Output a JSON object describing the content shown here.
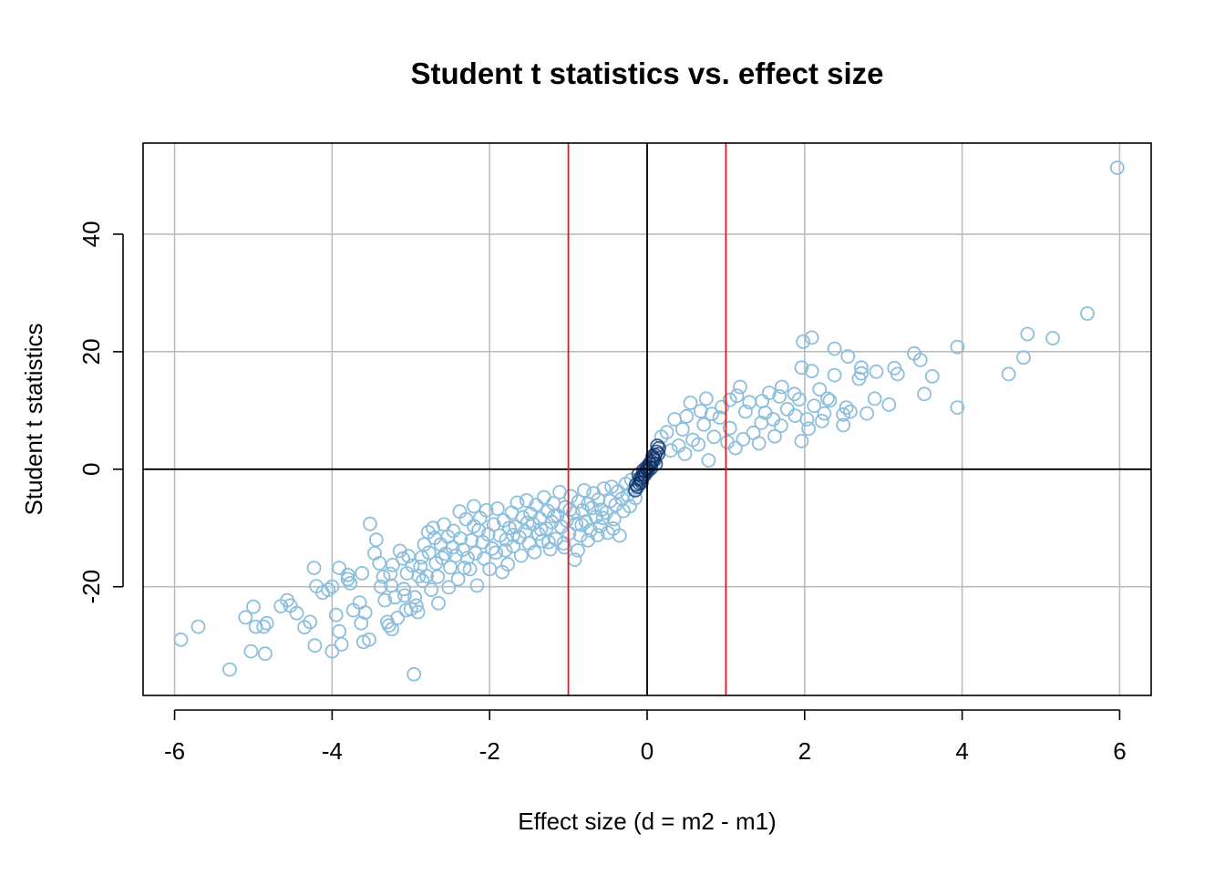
{
  "chart_data": {
    "type": "scatter",
    "title": "Student t statistics vs. effect size",
    "xlabel": "Effect size (d = m2 - m1)",
    "ylabel": "Student t statistics",
    "xlim": [
      -6.4,
      6.4
    ],
    "ylim": [
      -38.5,
      55.5
    ],
    "x_ticks": [
      -6,
      -4,
      -2,
      0,
      2,
      4,
      6
    ],
    "y_ticks": [
      -20,
      0,
      20,
      40
    ],
    "grid": true,
    "vertical_reference_lines": [
      {
        "x": -1,
        "color": "#e41a1c"
      },
      {
        "x": 1,
        "color": "#e41a1c"
      },
      {
        "x": 0,
        "color": "#000000"
      }
    ],
    "horizontal_reference_lines": [
      {
        "y": 0,
        "color": "#000000"
      }
    ],
    "marker": "open-circle",
    "point_color": "#8dbfdc",
    "dense_point_color": "#08306b",
    "points": [
      [
        5.97,
        51.3
      ],
      [
        5.59,
        26.5
      ],
      [
        5.15,
        22.3
      ],
      [
        4.83,
        23.0
      ],
      [
        4.78,
        19.0
      ],
      [
        4.59,
        16.2
      ],
      [
        3.94,
        20.8
      ],
      [
        3.94,
        10.5
      ],
      [
        3.62,
        15.8
      ],
      [
        3.52,
        12.8
      ],
      [
        3.47,
        18.6
      ],
      [
        3.39,
        19.7
      ],
      [
        3.18,
        16.2
      ],
      [
        3.14,
        17.2
      ],
      [
        3.07,
        11.0
      ],
      [
        2.91,
        16.6
      ],
      [
        2.89,
        12.0
      ],
      [
        2.79,
        9.5
      ],
      [
        2.72,
        16.3
      ],
      [
        2.72,
        17.3
      ],
      [
        2.69,
        15.4
      ],
      [
        2.55,
        19.2
      ],
      [
        2.53,
        10.5
      ],
      [
        2.49,
        9.3
      ],
      [
        2.49,
        7.5
      ],
      [
        2.38,
        20.5
      ],
      [
        2.38,
        16.0
      ],
      [
        2.29,
        12.0
      ],
      [
        2.25,
        9.5
      ],
      [
        2.19,
        13.6
      ],
      [
        2.09,
        22.4
      ],
      [
        2.09,
        16.7
      ],
      [
        1.98,
        21.7
      ],
      [
        1.96,
        17.3
      ],
      [
        1.96,
        4.8
      ],
      [
        2.03,
        8.5
      ],
      [
        1.87,
        12.8
      ],
      [
        1.71,
        14.0
      ],
      [
        1.55,
        13.0
      ],
      [
        1.46,
        11.6
      ],
      [
        1.18,
        14.0
      ],
      [
        1.14,
        12.5
      ],
      [
        0.78,
        1.5
      ],
      [
        0.75,
        12.0
      ],
      [
        0.55,
        11.3
      ],
      [
        0.5,
        9.0
      ],
      [
        0.35,
        8.5
      ],
      [
        0.18,
        5.5
      ],
      [
        1.78,
        10.2
      ],
      [
        1.6,
        8.5
      ],
      [
        1.35,
        6.2
      ],
      [
        1.25,
        9.8
      ],
      [
        1.05,
        7.0
      ],
      [
        0.95,
        10.6
      ],
      [
        0.85,
        5.5
      ],
      [
        0.65,
        4.2
      ],
      [
        0.45,
        6.8
      ],
      [
        0.3,
        3.2
      ],
      [
        1.62,
        5.6
      ],
      [
        1.42,
        4.4
      ],
      [
        1.12,
        3.6
      ],
      [
        0.92,
        8.8
      ],
      [
        0.72,
        7.6
      ],
      [
        0.58,
        5.0
      ],
      [
        0.4,
        4.0
      ],
      [
        0.25,
        6.3
      ],
      [
        1.3,
        11.4
      ],
      [
        1.5,
        9.6
      ],
      [
        1.7,
        7.4
      ],
      [
        1.88,
        9.1
      ],
      [
        2.12,
        10.8
      ],
      [
        2.32,
        11.7
      ],
      [
        2.58,
        9.8
      ],
      [
        1.05,
        11.8
      ],
      [
        0.82,
        9.4
      ],
      [
        1.45,
        7.9
      ],
      [
        1.93,
        11.9
      ],
      [
        1.22,
        5.1
      ],
      [
        0.68,
        9.9
      ],
      [
        0.48,
        2.6
      ],
      [
        1.02,
        4.6
      ],
      [
        1.68,
        12.4
      ],
      [
        2.22,
        8.2
      ],
      [
        2.05,
        6.9
      ],
      [
        -5.92,
        -29.0
      ],
      [
        -5.7,
        -26.8
      ],
      [
        -5.3,
        -34.1
      ],
      [
        -5.1,
        -25.2
      ],
      [
        -5.03,
        -31.0
      ],
      [
        -5.0,
        -23.4
      ],
      [
        -4.97,
        -26.8
      ],
      [
        -4.87,
        -26.8
      ],
      [
        -4.85,
        -31.4
      ],
      [
        -4.83,
        -26.2
      ],
      [
        -4.65,
        -23.3
      ],
      [
        -4.57,
        -22.3
      ],
      [
        -4.53,
        -23.2
      ],
      [
        -4.45,
        -24.5
      ],
      [
        -4.35,
        -26.9
      ],
      [
        -4.28,
        -26.0
      ],
      [
        -4.22,
        -30.0
      ],
      [
        -4.23,
        -16.8
      ],
      [
        -4.2,
        -19.9
      ],
      [
        -4.12,
        -21.0
      ],
      [
        -4.05,
        -20.5
      ],
      [
        -4.0,
        -20.0
      ],
      [
        -4.0,
        -31.0
      ],
      [
        -3.95,
        -24.8
      ],
      [
        -3.91,
        -27.6
      ],
      [
        -3.91,
        -16.8
      ],
      [
        -3.88,
        -29.8
      ],
      [
        -3.8,
        -18.0
      ],
      [
        -3.8,
        -18.7
      ],
      [
        -3.77,
        -19.4
      ],
      [
        -3.73,
        -24.0
      ],
      [
        -3.65,
        -22.7
      ],
      [
        -3.63,
        -26.2
      ],
      [
        -3.62,
        -17.7
      ],
      [
        -3.6,
        -29.4
      ],
      [
        -3.58,
        -24.4
      ],
      [
        -3.53,
        -29.0
      ],
      [
        -3.52,
        -9.3
      ],
      [
        -3.46,
        -14.3
      ],
      [
        -3.44,
        -12.0
      ],
      [
        -3.4,
        -16.0
      ],
      [
        -3.38,
        -20.0
      ],
      [
        -3.35,
        -18.3
      ],
      [
        -3.33,
        -22.3
      ],
      [
        -3.3,
        -26.0
      ],
      [
        -3.28,
        -26.6
      ],
      [
        -3.26,
        -17.8
      ],
      [
        -3.25,
        -19.8
      ],
      [
        -3.24,
        -27.2
      ],
      [
        -3.23,
        -16.3
      ],
      [
        -3.2,
        -21.8
      ],
      [
        -3.17,
        -25.3
      ],
      [
        -3.14,
        -13.9
      ],
      [
        -3.1,
        -15.2
      ],
      [
        -3.09,
        -20.4
      ],
      [
        -3.08,
        -21.5
      ],
      [
        -3.06,
        -24.0
      ],
      [
        -3.05,
        -17.7
      ],
      [
        -3.03,
        -14.8
      ],
      [
        -3.0,
        -23.8
      ],
      [
        -2.98,
        -16.4
      ],
      [
        -2.96,
        -34.9
      ],
      [
        -2.95,
        -21.8
      ],
      [
        -2.93,
        -23.2
      ],
      [
        -2.91,
        -24.3
      ],
      [
        -2.9,
        -18.2
      ],
      [
        -2.88,
        -16.6
      ],
      [
        -2.86,
        -15.0
      ],
      [
        -2.85,
        -19.0
      ],
      [
        -2.83,
        -12.8
      ],
      [
        -2.8,
        -18.2
      ],
      [
        -2.78,
        -10.7
      ],
      [
        -2.77,
        -14.2
      ],
      [
        -2.74,
        -20.5
      ],
      [
        -2.72,
        -10.0
      ],
      [
        -2.7,
        -11.7
      ],
      [
        -2.68,
        -16.0
      ],
      [
        -2.66,
        -18.3
      ],
      [
        -2.65,
        -22.8
      ],
      [
        -2.62,
        -12.8
      ],
      [
        -2.6,
        -15.1
      ],
      [
        -2.58,
        -9.4
      ],
      [
        -2.56,
        -14.4
      ],
      [
        -2.53,
        -11.5
      ],
      [
        -2.52,
        -20.1
      ],
      [
        -2.5,
        -16.7
      ],
      [
        -2.47,
        -13.3
      ],
      [
        -2.46,
        -10.5
      ],
      [
        -2.43,
        -14.7
      ],
      [
        -2.4,
        -18.7
      ],
      [
        -2.38,
        -7.2
      ],
      [
        -2.37,
        -11.8
      ],
      [
        -2.34,
        -13.7
      ],
      [
        -2.32,
        -16.8
      ],
      [
        -2.3,
        -8.5
      ],
      [
        -2.28,
        -15.1
      ],
      [
        -2.25,
        -17.0
      ],
      [
        -2.23,
        -12.1
      ],
      [
        -2.2,
        -6.3
      ],
      [
        -2.18,
        -14.3
      ],
      [
        -2.16,
        -19.8
      ],
      [
        -2.14,
        -10.4
      ],
      [
        -2.12,
        -8.3
      ],
      [
        -2.09,
        -12.4
      ],
      [
        -2.07,
        -15.2
      ],
      [
        -2.04,
        -7.0
      ],
      [
        -2.02,
        -11.1
      ],
      [
        -2.0,
        -17.0
      ],
      [
        -1.97,
        -13.5
      ],
      [
        -1.95,
        -9.4
      ],
      [
        -1.92,
        -14.2
      ],
      [
        -1.9,
        -6.7
      ],
      [
        -1.87,
        -11.3
      ],
      [
        -1.84,
        -17.5
      ],
      [
        -1.82,
        -8.7
      ],
      [
        -1.79,
        -12.0
      ],
      [
        -1.77,
        -16.2
      ],
      [
        -1.75,
        -10.0
      ],
      [
        -1.72,
        -7.4
      ],
      [
        -1.7,
        -13.1
      ],
      [
        -1.67,
        -9.8
      ],
      [
        -1.65,
        -5.7
      ],
      [
        -1.62,
        -11.6
      ],
      [
        -1.6,
        -14.7
      ],
      [
        -1.58,
        -8.2
      ],
      [
        -1.55,
        -10.6
      ],
      [
        -1.53,
        -5.3
      ],
      [
        -1.5,
        -12.6
      ],
      [
        -1.48,
        -7.6
      ],
      [
        -1.45,
        -9.3
      ],
      [
        -1.43,
        -14.1
      ],
      [
        -1.41,
        -6.1
      ],
      [
        -1.38,
        -11.0
      ],
      [
        -1.36,
        -8.4
      ],
      [
        -1.33,
        -12.2
      ],
      [
        -1.31,
        -4.8
      ],
      [
        -1.28,
        -10.1
      ],
      [
        -1.26,
        -7.1
      ],
      [
        -1.23,
        -13.6
      ],
      [
        -1.21,
        -9.0
      ],
      [
        -1.19,
        -5.8
      ],
      [
        -1.16,
        -11.9
      ],
      [
        -1.14,
        -7.9
      ],
      [
        -1.11,
        -3.9
      ],
      [
        -1.09,
        -9.8
      ],
      [
        -1.06,
        -12.6
      ],
      [
        -1.04,
        -6.5
      ],
      [
        -1.02,
        -8.7
      ],
      [
        -0.99,
        -10.9
      ],
      [
        -0.97,
        -4.6
      ],
      [
        -0.94,
        -7.5
      ],
      [
        -0.92,
        -15.4
      ],
      [
        -0.9,
        -9.3
      ],
      [
        -0.87,
        -5.5
      ],
      [
        -0.85,
        -11.3
      ],
      [
        -0.82,
        -7.0
      ],
      [
        -0.8,
        -3.6
      ],
      [
        -0.78,
        -8.9
      ],
      [
        -0.75,
        -5.9
      ],
      [
        -0.72,
        -10.4
      ],
      [
        -0.7,
        -6.6
      ],
      [
        -0.68,
        -4.1
      ],
      [
        -0.65,
        -8.1
      ],
      [
        -0.62,
        -5.2
      ],
      [
        -0.6,
        -9.7
      ],
      [
        -0.58,
        -6.9
      ],
      [
        -0.55,
        -3.3
      ],
      [
        -0.52,
        -7.4
      ],
      [
        -0.5,
        -10.8
      ],
      [
        -0.47,
        -5.4
      ],
      [
        -0.45,
        -3.0
      ],
      [
        -0.42,
        -8.5
      ],
      [
        -0.4,
        -6.1
      ],
      [
        -0.37,
        -3.8
      ],
      [
        -0.35,
        -11.3
      ],
      [
        -0.32,
        -5.0
      ],
      [
        -0.3,
        -7.1
      ],
      [
        -0.27,
        -2.5
      ],
      [
        -0.25,
        -4.4
      ],
      [
        -0.22,
        -6.3
      ],
      [
        -0.2,
        -1.8
      ],
      [
        -0.17,
        -3.4
      ],
      [
        -0.15,
        -4.9
      ],
      [
        -1.8,
        -13.8
      ],
      [
        -1.35,
        -10.2
      ],
      [
        -1.05,
        -13.3
      ],
      [
        -0.75,
        -12.1
      ],
      [
        -2.2,
        -9.7
      ],
      [
        -1.7,
        -11.2
      ],
      [
        -1.25,
        -12.4
      ],
      [
        -0.88,
        -13.8
      ],
      [
        -0.63,
        -11.2
      ],
      [
        -1.52,
        -9.1
      ],
      [
        -1.18,
        -8.0
      ],
      [
        -0.98,
        -6.9
      ],
      [
        -0.83,
        -9.5
      ],
      [
        -0.56,
        -8.3
      ],
      [
        -0.43,
        -10.1
      ]
    ],
    "dense_points": [
      [
        0.0,
        0.0
      ],
      [
        0.02,
        0.4
      ],
      [
        -0.02,
        -0.4
      ],
      [
        0.04,
        0.8
      ],
      [
        -0.04,
        -0.8
      ],
      [
        0.06,
        1.3
      ],
      [
        -0.06,
        -1.3
      ],
      [
        0.08,
        1.8
      ],
      [
        -0.08,
        -1.8
      ],
      [
        0.1,
        2.4
      ],
      [
        -0.1,
        -2.4
      ],
      [
        0.12,
        3.0
      ],
      [
        -0.12,
        -3.0
      ],
      [
        0.01,
        -0.3
      ],
      [
        -0.01,
        0.3
      ],
      [
        0.03,
        1.0
      ],
      [
        -0.03,
        -1.0
      ],
      [
        0.05,
        0.2
      ],
      [
        -0.05,
        -0.2
      ],
      [
        0.07,
        2.2
      ],
      [
        -0.07,
        -2.2
      ],
      [
        0.09,
        1.5
      ],
      [
        -0.09,
        -1.5
      ],
      [
        0.14,
        2.6
      ],
      [
        -0.14,
        -2.6
      ],
      [
        0.15,
        3.6
      ],
      [
        -0.15,
        -3.6
      ],
      [
        0.11,
        0.9
      ],
      [
        -0.11,
        -0.9
      ],
      [
        0.13,
        4.0
      ]
    ]
  }
}
